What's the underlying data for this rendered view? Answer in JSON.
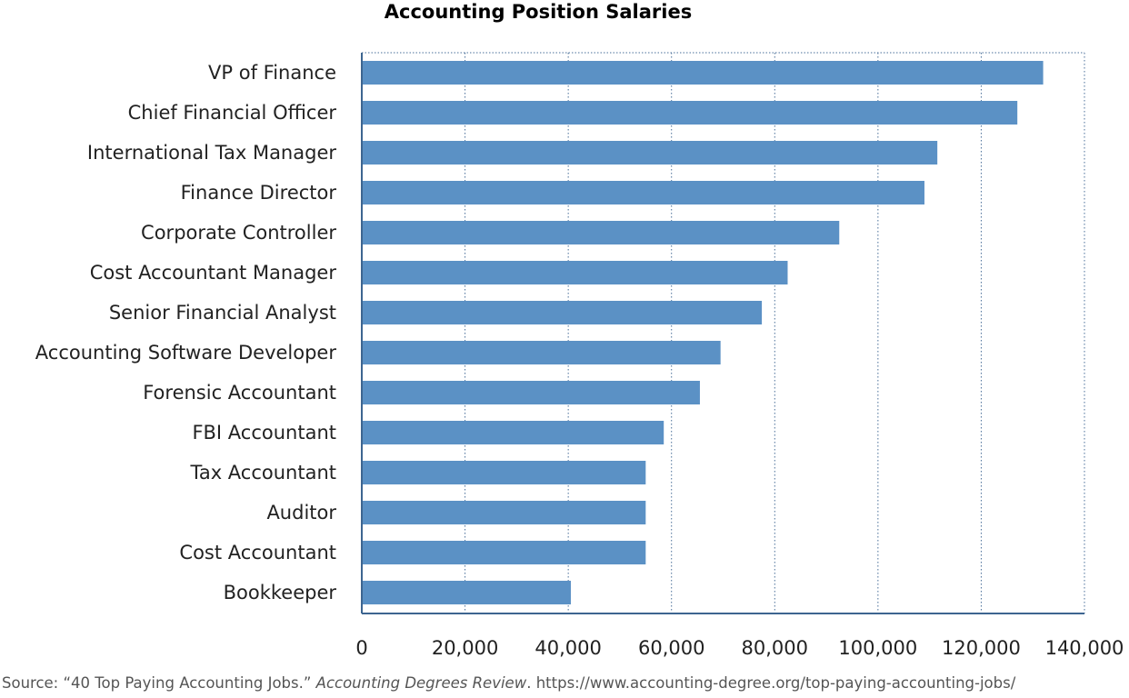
{
  "chart_data": {
    "type": "bar",
    "orientation": "horizontal",
    "title": "Accounting Position Salaries",
    "xlabel": "",
    "ylabel": "",
    "categories": [
      "VP of Finance",
      "Chief Financial Officer",
      "International Tax Manager",
      "Finance Director",
      "Corporate Controller",
      "Cost Accountant Manager",
      "Senior Financial Analyst",
      "Accounting Software Developer",
      "Forensic Accountant",
      "FBI Accountant",
      "Tax Accountant",
      "Auditor",
      "Cost Accountant",
      "Bookkeeper"
    ],
    "values": [
      132000,
      127000,
      111500,
      109000,
      92500,
      82500,
      77500,
      69500,
      65500,
      58500,
      55000,
      55000,
      55000,
      40500
    ],
    "xlim": [
      0,
      140000
    ],
    "xticks": [
      0,
      20000,
      40000,
      60000,
      80000,
      100000,
      120000,
      140000
    ],
    "xtick_labels": [
      "0",
      "20,000",
      "40,000",
      "60,000",
      "80,000",
      "100,000",
      "120,000",
      "140,000"
    ],
    "grid": "vertical dotted",
    "bar_color": "#5b91c5",
    "legend": "none"
  },
  "source": {
    "prefix": "Source: “40 Top Paying Accounting Jobs.” ",
    "publication": "Accounting Degrees Review",
    "suffix": ". https://www.accounting-degree.org/top-paying-accounting-jobs/"
  }
}
